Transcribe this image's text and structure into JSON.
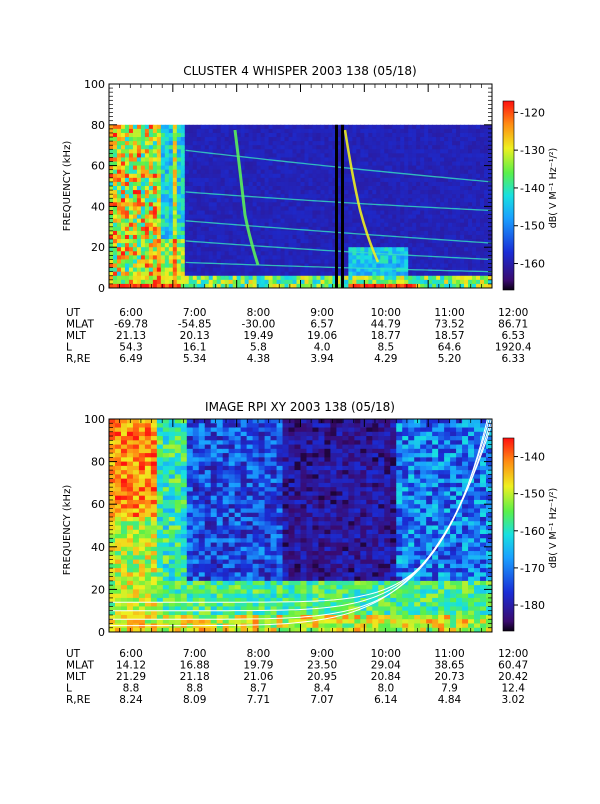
{
  "chart_data": [
    {
      "type": "heatmap",
      "title": "CLUSTER 4 WHISPER 2003 138 (05/18)",
      "ylabel": "FREQUENCY (kHz)",
      "ylim": [
        0,
        100
      ],
      "y_ticks": [
        "0",
        "20",
        "40",
        "60",
        "80",
        "100"
      ],
      "xlim": [
        "6:00",
        "12:00"
      ],
      "colorbar_label": "dB( V M⁻¹ Hz⁻¹/²)",
      "colorbar_range": [
        -167,
        -117
      ],
      "colorbar_ticks": [
        "-160",
        "-150",
        "-140",
        "-130",
        "-120"
      ],
      "data_upper_frequency_khz": 80,
      "ephemeris": {
        "labels": [
          "UT",
          "MLAT",
          "MLT",
          "L",
          "R,RE"
        ],
        "columns": [
          {
            "UT": "6:00",
            "MLAT": "-69.78",
            "MLT": "21.13",
            "L": "54.3",
            "R,RE": "6.49"
          },
          {
            "UT": "7:00",
            "MLAT": "-54.85",
            "MLT": "20.13",
            "L": "16.1",
            "R,RE": "5.34"
          },
          {
            "UT": "8:00",
            "MLAT": "-30.00",
            "MLT": "19.49",
            "L": "5.8",
            "R,RE": "4.38"
          },
          {
            "UT": "9:00",
            "MLAT": "6.57",
            "MLT": "19.06",
            "L": "4.0",
            "R,RE": "3.94"
          },
          {
            "UT": "10:00",
            "MLAT": "44.79",
            "MLT": "18.77",
            "L": "8.5",
            "R,RE": "4.29"
          },
          {
            "UT": "11:00",
            "MLAT": "73.52",
            "MLT": "18.57",
            "L": "64.6",
            "R,RE": "5.20"
          },
          {
            "UT": "12:00",
            "MLAT": "86.71",
            "MLT": "6.53",
            "L": "1920.4",
            "R,RE": "6.33"
          }
        ]
      }
    },
    {
      "type": "heatmap",
      "title": "IMAGE RPI XY 2003 138 (05/18)",
      "ylabel": "FREQUENCY (kHz)",
      "ylim": [
        0,
        100
      ],
      "y_ticks": [
        "0",
        "20",
        "40",
        "60",
        "80",
        "100"
      ],
      "xlim": [
        "6:00",
        "12:00"
      ],
      "colorbar_label": "dB( V M⁻¹ Hz⁻¹/²)",
      "colorbar_range": [
        -187,
        -135
      ],
      "colorbar_ticks": [
        "-180",
        "-170",
        "-160",
        "-150",
        "-140"
      ],
      "ephemeris": {
        "labels": [
          "UT",
          "MLAT",
          "MLT",
          "L",
          "R,RE"
        ],
        "columns": [
          {
            "UT": "6:00",
            "MLAT": "14.12",
            "MLT": "21.29",
            "L": "8.8",
            "R,RE": "8.24"
          },
          {
            "UT": "7:00",
            "MLAT": "16.88",
            "MLT": "21.18",
            "L": "8.8",
            "R,RE": "8.09"
          },
          {
            "UT": "8:00",
            "MLAT": "19.79",
            "MLT": "21.06",
            "L": "8.7",
            "R,RE": "7.71"
          },
          {
            "UT": "9:00",
            "MLAT": "23.50",
            "MLT": "20.95",
            "L": "8.4",
            "R,RE": "7.07"
          },
          {
            "UT": "10:00",
            "MLAT": "29.04",
            "MLT": "20.84",
            "L": "8.0",
            "R,RE": "6.14"
          },
          {
            "UT": "11:00",
            "MLAT": "38.65",
            "MLT": "20.73",
            "L": "7.9",
            "R,RE": "4.84"
          },
          {
            "UT": "12:00",
            "MLAT": "60.47",
            "MLT": "20.42",
            "L": "12.4",
            "R,RE": "3.02"
          }
        ]
      }
    }
  ]
}
